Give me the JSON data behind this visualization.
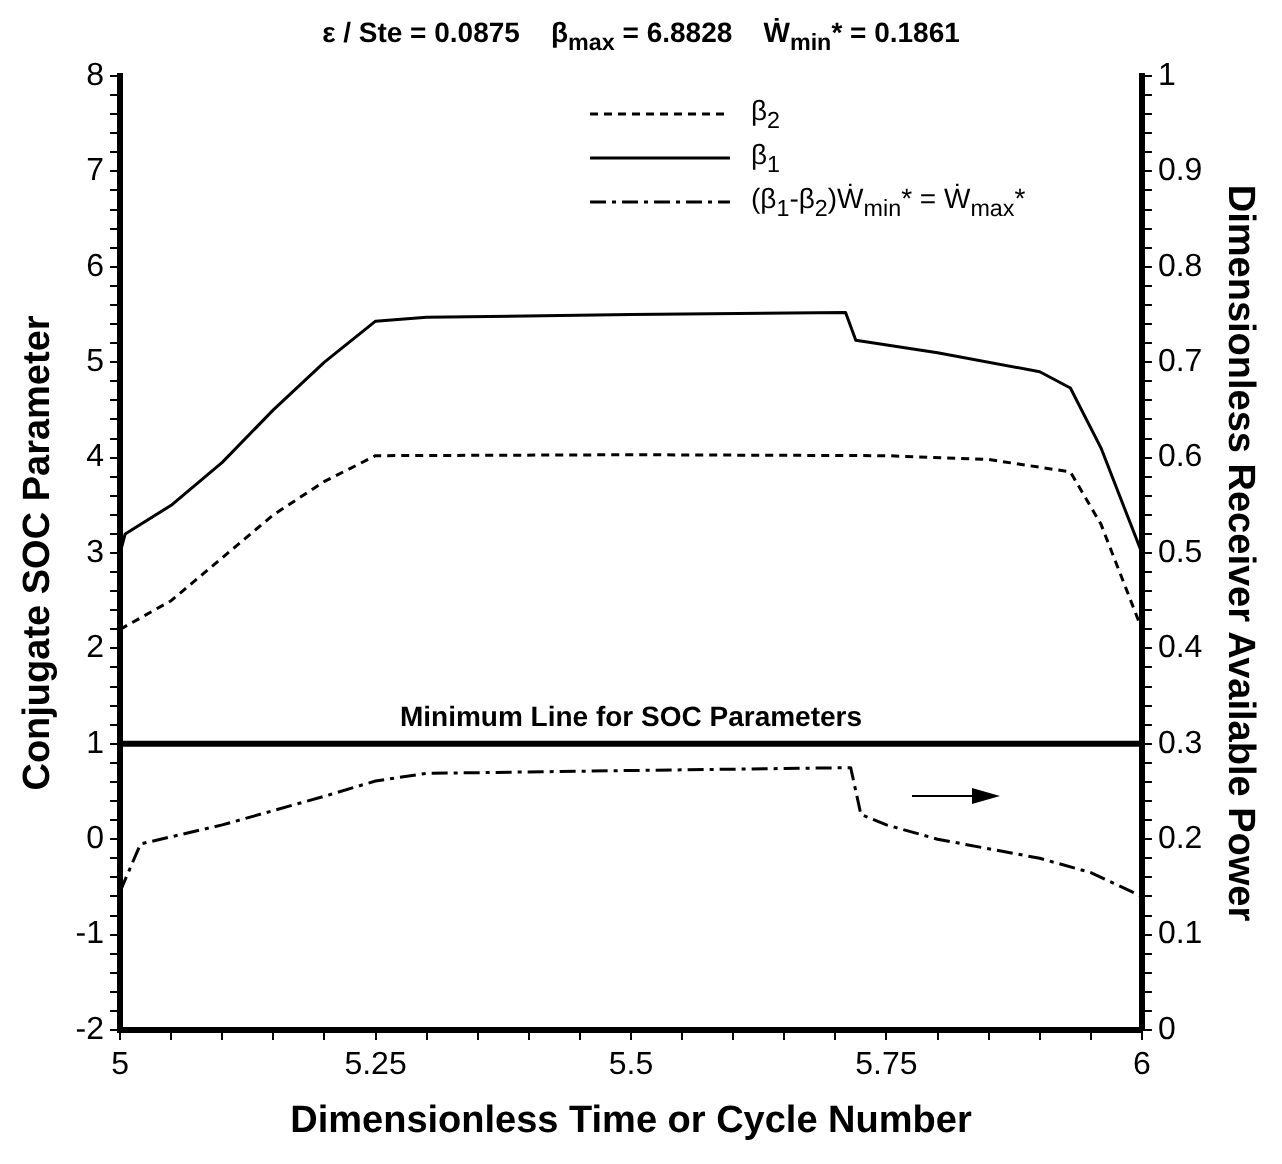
{
  "chart_data": {
    "type": "line",
    "title": "ε / Ste = 0.0875    β$_{max}$ = 6.8828    Ẇ$_{min}$* = 0.1861",
    "xlabel": "Dimensionless Time or Cycle Number",
    "ylabel": "Conjugate SOC Parameter",
    "y2label": "Dimensionless Receiver Available Power",
    "xlim": [
      5,
      6
    ],
    "ylim": [
      -2,
      8
    ],
    "y2lim": [
      0,
      1
    ],
    "xticks": [
      5,
      {
        "value": 5.05,
        "label": null
      },
      {
        "value": 5.1,
        "label": null
      },
      {
        "value": 5.15,
        "label": null
      },
      {
        "value": 5.2,
        "label": null
      },
      5.25,
      {
        "value": 5.3,
        "label": null
      },
      {
        "value": 5.35,
        "label": null
      },
      {
        "value": 5.4,
        "label": null
      },
      {
        "value": 5.45,
        "label": null
      },
      5.5,
      {
        "value": 5.55,
        "label": null
      },
      {
        "value": 5.6,
        "label": null
      },
      {
        "value": 5.65,
        "label": null
      },
      {
        "value": 5.7,
        "label": null
      },
      5.75,
      {
        "value": 5.8,
        "label": null
      },
      {
        "value": 5.85,
        "label": null
      },
      {
        "value": 5.9,
        "label": null
      },
      {
        "value": 5.95,
        "label": null
      },
      6
    ],
    "yticks": [
      -2,
      {
        "value": -1.8,
        "label": null
      },
      {
        "value": -1.6,
        "label": null
      },
      {
        "value": -1.4,
        "label": null
      },
      {
        "value": -1.2,
        "label": null
      },
      -1,
      {
        "value": -0.8,
        "label": null
      },
      {
        "value": -0.6,
        "label": null
      },
      {
        "value": -0.4,
        "label": null
      },
      {
        "value": -0.2,
        "label": null
      },
      0,
      {
        "value": 0.2,
        "label": null
      },
      {
        "value": 0.4,
        "label": null
      },
      {
        "value": 0.6,
        "label": null
      },
      {
        "value": 0.8,
        "label": null
      },
      1,
      {
        "value": 1.2,
        "label": null
      },
      {
        "value": 1.4,
        "label": null
      },
      {
        "value": 1.6,
        "label": null
      },
      {
        "value": 1.8,
        "label": null
      },
      2,
      {
        "value": 2.2,
        "label": null
      },
      {
        "value": 2.4,
        "label": null
      },
      {
        "value": 2.6,
        "label": null
      },
      {
        "value": 2.8,
        "label": null
      },
      3,
      {
        "value": 3.2,
        "label": null
      },
      {
        "value": 3.4,
        "label": null
      },
      {
        "value": 3.6,
        "label": null
      },
      {
        "value": 3.8,
        "label": null
      },
      4,
      {
        "value": 4.2,
        "label": null
      },
      {
        "value": 4.4,
        "label": null
      },
      {
        "value": 4.6,
        "label": null
      },
      {
        "value": 4.8,
        "label": null
      },
      5,
      {
        "value": 5.2,
        "label": null
      },
      {
        "value": 5.4,
        "label": null
      },
      {
        "value": 5.6,
        "label": null
      },
      {
        "value": 5.8,
        "label": null
      },
      6,
      {
        "value": 6.2,
        "label": null
      },
      {
        "value": 6.4,
        "label": null
      },
      {
        "value": 6.6,
        "label": null
      },
      {
        "value": 6.8,
        "label": null
      },
      7,
      {
        "value": 7.2,
        "label": null
      },
      {
        "value": 7.4,
        "label": null
      },
      {
        "value": 7.6,
        "label": null
      },
      {
        "value": 7.8,
        "label": null
      },
      8
    ],
    "y2ticks": [
      0,
      {
        "value": 0.02,
        "label": null
      },
      {
        "value": 0.04,
        "label": null
      },
      {
        "value": 0.06,
        "label": null
      },
      {
        "value": 0.08,
        "label": null
      },
      0.1,
      {
        "value": 0.12,
        "label": null
      },
      {
        "value": 0.14,
        "label": null
      },
      {
        "value": 0.16,
        "label": null
      },
      {
        "value": 0.18,
        "label": null
      },
      0.2,
      {
        "value": 0.22,
        "label": null
      },
      {
        "value": 0.24,
        "label": null
      },
      {
        "value": 0.26,
        "label": null
      },
      {
        "value": 0.28,
        "label": null
      },
      0.3,
      {
        "value": 0.32,
        "label": null
      },
      {
        "value": 0.34,
        "label": null
      },
      {
        "value": 0.36,
        "label": null
      },
      {
        "value": 0.38,
        "label": null
      },
      0.4,
      {
        "value": 0.42,
        "label": null
      },
      {
        "value": 0.44,
        "label": null
      },
      {
        "value": 0.46,
        "label": null
      },
      {
        "value": 0.48,
        "label": null
      },
      0.5,
      {
        "value": 0.52,
        "label": null
      },
      {
        "value": 0.54,
        "label": null
      },
      {
        "value": 0.56,
        "label": null
      },
      {
        "value": 0.58,
        "label": null
      },
      0.6,
      {
        "value": 0.62,
        "label": null
      },
      {
        "value": 0.64,
        "label": null
      },
      {
        "value": 0.66,
        "label": null
      },
      {
        "value": 0.68,
        "label": null
      },
      0.7,
      {
        "value": 0.72,
        "label": null
      },
      {
        "value": 0.74,
        "label": null
      },
      {
        "value": 0.76,
        "label": null
      },
      {
        "value": 0.78,
        "label": null
      },
      0.8,
      {
        "value": 0.82,
        "label": null
      },
      {
        "value": 0.84,
        "label": null
      },
      {
        "value": 0.86,
        "label": null
      },
      {
        "value": 0.88,
        "label": null
      },
      0.9,
      {
        "value": 0.92,
        "label": null
      },
      {
        "value": 0.94,
        "label": null
      },
      {
        "value": 0.96,
        "label": null
      },
      {
        "value": 0.98,
        "label": null
      },
      1
    ],
    "grid": false,
    "legend": "top",
    "marker": "none",
    "ref_lines": [
      {
        "axis": "y",
        "value": 1,
        "label": "Minimum Line for SOC Parameters",
        "color": "#000000"
      }
    ],
    "series": [
      {
        "name": "β$_{2}$",
        "color": "#000000",
        "line_style": "dashed",
        "x": [
          5,
          5.05,
          5.1,
          5.15,
          5.2,
          5.25,
          5.5,
          5.75,
          5.85,
          5.93,
          5.96,
          6
        ],
        "values": [
          2.2,
          2.5,
          2.95,
          3.4,
          3.75,
          4.02,
          4.03,
          4.02,
          3.98,
          3.85,
          3.3,
          2.2
        ]
      },
      {
        "name": "β$_{1}$",
        "color": "#000000",
        "line_style": "solid",
        "x": [
          5,
          5.005,
          5.05,
          5.1,
          5.15,
          5.2,
          5.25,
          5.3,
          5.5,
          5.71,
          5.72,
          5.8,
          5.9,
          5.93,
          5.96,
          6
        ],
        "values": [
          3.0,
          3.2,
          3.5,
          3.95,
          4.5,
          5.0,
          5.43,
          5.47,
          5.5,
          5.52,
          5.23,
          5.1,
          4.9,
          4.73,
          4.1,
          3.0
        ]
      },
      {
        "name": "(β$_{1}$-β$_{2}$)Ẇ$_{min}$* = Ẇ$_{max}$*",
        "color": "#000000",
        "line_style": "dashdot",
        "axis": "y2",
        "x": [
          5,
          5.02,
          5.1,
          5.2,
          5.25,
          5.3,
          5.5,
          5.715,
          5.725,
          5.75,
          5.8,
          5.9,
          5.95,
          6
        ],
        "values": [
          0.145,
          0.195,
          0.215,
          0.245,
          0.261,
          0.269,
          0.272,
          0.275,
          0.226,
          0.215,
          0.2,
          0.18,
          0.165,
          0.14
        ]
      }
    ]
  }
}
